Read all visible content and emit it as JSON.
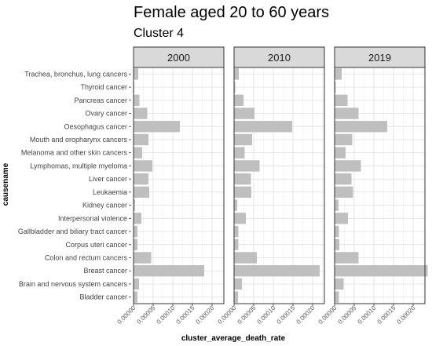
{
  "chart_data": {
    "type": "bar",
    "orientation": "horizontal",
    "title": "Female aged 20 to 60 years",
    "subtitle": "Cluster 4",
    "xlabel": "cluster_average_death_rate",
    "ylabel": "causename",
    "xlim": [
      0,
      0.00023
    ],
    "xticks": [
      "0.00000",
      "0.00005",
      "0.00010",
      "0.00015",
      "0.00020"
    ],
    "xtick_values": [
      0,
      5e-05,
      0.0001,
      0.00015,
      0.0002
    ],
    "grid": true,
    "bar_color": "#bfbfbf",
    "categories": [
      "Trachea, bronchus, lung cancers",
      "Thyroid cancer",
      "Pancreas cancer",
      "Ovary cancer",
      "Oesophagus cancer",
      "Mouth and oropharynx cancers",
      "Melanoma and other skin cancers",
      "Lymphomas, multiple myeloma",
      "Liver cancer",
      "Leukaemia",
      "Kidney cancer",
      "Interpersonal violence",
      "Gallbladder and biliary tract cancer",
      "Corpus uteri cancer",
      "Colon and rectum cancers",
      "Breast cancer",
      "Brain and nervous system cancers",
      "Bladder cancer"
    ],
    "series": [
      {
        "name": "2000",
        "values": [
          1.2e-05,
          2e-06,
          1.5e-05,
          3.5e-05,
          0.000118,
          3.8e-05,
          2.2e-05,
          4.8e-05,
          3.8e-05,
          4e-05,
          4e-06,
          2e-05,
          1e-05,
          1e-05,
          4.5e-05,
          0.00018,
          1.4e-05,
          1e-05
        ]
      },
      {
        "name": "2010",
        "values": [
          1.2e-05,
          3e-06,
          2.4e-05,
          5.2e-05,
          0.000148,
          4.6e-05,
          2.7e-05,
          6.5e-05,
          4.3e-05,
          4.4e-05,
          8e-06,
          3e-05,
          1.1e-05,
          1.1e-05,
          5.8e-05,
          0.000218,
          2e-05,
          1e-05
        ]
      },
      {
        "name": "2019",
        "values": [
          1.8e-05,
          3e-06,
          3.3e-05,
          6.1e-05,
          0.000134,
          4.5e-05,
          2.8e-05,
          6.7e-05,
          4.3e-05,
          4.7e-05,
          1e-05,
          3.4e-05,
          1.1e-05,
          1.2e-05,
          6.1e-05,
          0.000237,
          2.3e-05,
          1.1e-05
        ]
      }
    ]
  }
}
